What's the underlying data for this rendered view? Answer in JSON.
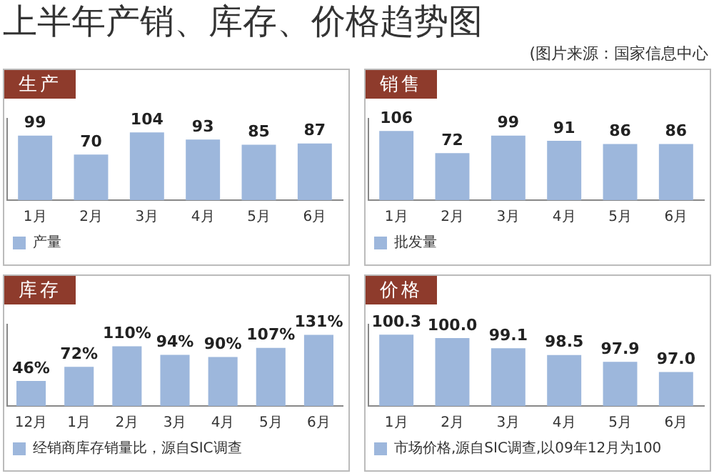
{
  "chart_data": [
    {
      "type": "bar",
      "title": "上半年产销、库存、价格趋势图",
      "subtitle": "生产",
      "annotations": [
        "(图片来源：国家信息中心"
      ],
      "categories": [
        "1月",
        "2月",
        "3月",
        "4月",
        "5月",
        "6月"
      ],
      "series": [
        {
          "name": "产量",
          "color": "#9db7dc",
          "values": [
            99,
            70,
            104,
            93,
            85,
            87
          ]
        }
      ],
      "ylim": [
        0,
        125
      ],
      "tick_labels": "x",
      "data_labels": true,
      "legend": "bottom left",
      "grid": false
    },
    {
      "type": "bar",
      "subtitle": "销售",
      "categories": [
        "1月",
        "2月",
        "3月",
        "4月",
        "5月",
        "6月"
      ],
      "series": [
        {
          "name": "批发量",
          "color": "#9db7dc",
          "values": [
            106,
            72,
            99,
            91,
            86,
            86
          ]
        }
      ],
      "ylim": [
        0,
        125
      ],
      "tick_labels": "x",
      "data_labels": true,
      "legend": "bottom left",
      "grid": false
    },
    {
      "type": "bar",
      "subtitle": "库存",
      "categories": [
        "12月",
        "1月",
        "2月",
        "3月",
        "4月",
        "5月",
        "6月"
      ],
      "series": [
        {
          "name": "经销商库存销量比，源自SIC调查",
          "color": "#9db7dc",
          "values": [
            46,
            72,
            110,
            94,
            90,
            107,
            131
          ],
          "value_labels": [
            "46%",
            "72%",
            "110%",
            "94%",
            "90%",
            "107%",
            "131%"
          ]
        }
      ],
      "ylim": [
        0,
        150
      ],
      "tick_labels": "x",
      "legend": "bottom left",
      "grid": false
    },
    {
      "type": "bar",
      "subtitle": "价格",
      "categories": [
        "1月",
        "2月",
        "3月",
        "4月",
        "5月",
        "6月"
      ],
      "series": [
        {
          "name": "市场价格,源自SIC调查,以09年12月为100",
          "color": "#9db7dc",
          "values": [
            100.3,
            100.0,
            99.1,
            98.5,
            97.9,
            97.0
          ],
          "value_labels": [
            "100.3",
            "100.0",
            "99.1",
            "98.5",
            "97.9",
            "97.0"
          ]
        }
      ],
      "ylim": [
        94,
        101.2
      ],
      "tick_labels": "x",
      "legend": "bottom left",
      "grid": false
    }
  ]
}
